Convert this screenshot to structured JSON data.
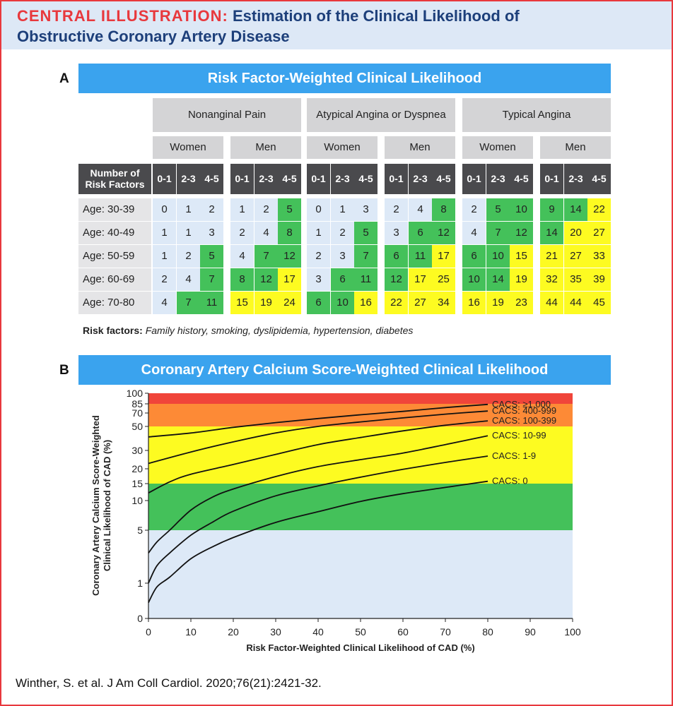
{
  "header": {
    "lead": "CENTRAL ILLUSTRATION:",
    "title_line1": "Estimation of the Clinical Likelihood of",
    "title_line2": "Obstructive Coronary Artery Disease"
  },
  "panel_a": {
    "letter": "A",
    "banner": "Risk Factor-Weighted Clinical Likelihood",
    "row_header": "Number of Risk Factors",
    "symptoms": [
      "Nonanginal Pain",
      "Atypical Angina or Dyspnea",
      "Typical Angina"
    ],
    "sexes": [
      "Women",
      "Men"
    ],
    "rf_groups": [
      "0-1",
      "2-3",
      "4-5"
    ],
    "age_labels": [
      "Age: 30-39",
      "Age: 40-49",
      "Age: 50-59",
      "Age: 60-69",
      "Age: 70-80"
    ],
    "values": [
      [
        0,
        1,
        2,
        1,
        2,
        5,
        0,
        1,
        3,
        2,
        4,
        8,
        2,
        5,
        10,
        9,
        14,
        22
      ],
      [
        1,
        1,
        3,
        2,
        4,
        8,
        1,
        2,
        5,
        3,
        6,
        12,
        4,
        7,
        12,
        14,
        20,
        27
      ],
      [
        1,
        2,
        5,
        4,
        7,
        12,
        2,
        3,
        7,
        6,
        11,
        17,
        6,
        10,
        15,
        21,
        27,
        33
      ],
      [
        2,
        4,
        7,
        8,
        12,
        17,
        3,
        6,
        11,
        12,
        17,
        25,
        10,
        14,
        19,
        32,
        35,
        39
      ],
      [
        4,
        7,
        11,
        15,
        19,
        24,
        6,
        10,
        16,
        22,
        27,
        34,
        16,
        19,
        23,
        44,
        44,
        45
      ]
    ],
    "footnote_label": "Risk factors:",
    "footnote_text": "Family history, smoking, dyslipidemia, hypertension, diabetes",
    "colors": {
      "low": "#dde9f7",
      "intermediate": "#44c15a",
      "high": "#fdfb21"
    }
  },
  "panel_b": {
    "letter": "B",
    "banner": "Coronary Artery Calcium Score-Weighted Clinical Likelihood"
  },
  "chart_data": {
    "type": "line",
    "xlabel": "Risk Factor-Weighted Clinical Likelihood of CAD (%)",
    "ylabel": "Coronary Artery Calcium Score-Weighted Clinical Likelihood of CAD (%)",
    "xlim": [
      0,
      100
    ],
    "x_ticks": [
      0,
      10,
      20,
      30,
      40,
      50,
      60,
      70,
      80,
      90,
      100
    ],
    "y_ticks": [
      0,
      1,
      5,
      10,
      15,
      20,
      30,
      50,
      70,
      85,
      100
    ],
    "ylim": [
      0,
      100
    ],
    "bands": [
      {
        "from": 0,
        "to": 5,
        "color": "#dde9f7"
      },
      {
        "from": 5,
        "to": 15,
        "color": "#44c15a"
      },
      {
        "from": 15,
        "to": 50,
        "color": "#fdfb21"
      },
      {
        "from": 50,
        "to": 85,
        "color": "#fd8a36"
      },
      {
        "from": 85,
        "to": 100,
        "color": "#f0453a"
      }
    ],
    "series": [
      {
        "name": "CACS: 0",
        "x": [
          0,
          2,
          5,
          10,
          15,
          20,
          30,
          40,
          50,
          60,
          70,
          80
        ],
        "y": [
          0.2,
          0.8,
          1.2,
          2.1,
          3,
          4,
          6,
          7.7,
          9.8,
          11.8,
          13.7,
          15.7
        ]
      },
      {
        "name": "CACS: 1-9",
        "x": [
          0,
          2,
          5,
          10,
          15,
          20,
          30,
          40,
          50,
          60,
          70,
          80
        ],
        "y": [
          1,
          1.7,
          2.5,
          4.3,
          6,
          7.8,
          11.2,
          14.2,
          17,
          19.8,
          23,
          26.5
        ]
      },
      {
        "name": "CACS: 10-99",
        "x": [
          0,
          2,
          5,
          10,
          15,
          20,
          30,
          40,
          50,
          60,
          70,
          80
        ],
        "y": [
          2.5,
          3.5,
          5,
          8,
          10.8,
          13.2,
          17.2,
          21,
          24.5,
          28.3,
          34,
          41
        ]
      },
      {
        "name": "CACS: 100-399",
        "x": [
          0,
          5,
          10,
          20,
          30,
          40,
          50,
          60,
          70,
          80
        ],
        "y": [
          12,
          15.5,
          18,
          22,
          27.5,
          34,
          39.5,
          45.5,
          51.5,
          57.5
        ]
      },
      {
        "name": "CACS: 400-999",
        "x": [
          0,
          10,
          20,
          30,
          40,
          50,
          60,
          70,
          80
        ],
        "y": [
          22.5,
          29,
          36,
          43.5,
          50,
          56,
          62,
          68,
          73
        ]
      },
      {
        "name": "CACS: ≥1,000",
        "x": [
          0,
          10,
          20,
          30,
          40,
          50,
          60,
          70,
          80
        ],
        "y": [
          40,
          43.5,
          49,
          55,
          61,
          67,
          72.5,
          78.5,
          84
        ]
      }
    ]
  }
}
